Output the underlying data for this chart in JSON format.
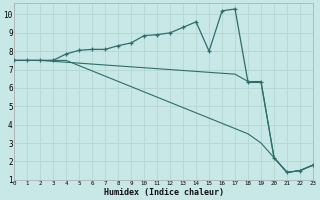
{
  "xlabel": "Humidex (Indice chaleur)",
  "bg_color": "#c8e8e8",
  "line_color": "#2d6e6a",
  "grid_color": "#b8d8d4",
  "xlim": [
    0,
    23
  ],
  "ylim": [
    1,
    10.6
  ],
  "xticks": [
    0,
    1,
    2,
    3,
    4,
    5,
    6,
    7,
    8,
    9,
    10,
    11,
    12,
    13,
    14,
    15,
    16,
    17,
    18,
    19,
    20,
    21,
    22,
    23
  ],
  "yticks": [
    1,
    2,
    3,
    4,
    5,
    6,
    7,
    8,
    9,
    10
  ],
  "line1_x": [
    0,
    1,
    2,
    3,
    4,
    5,
    6,
    7,
    8,
    9,
    10,
    11,
    12,
    13,
    14,
    15,
    16,
    17,
    18,
    19,
    20,
    21,
    22,
    23
  ],
  "line1_y": [
    7.5,
    7.5,
    7.5,
    7.5,
    7.85,
    8.05,
    8.1,
    8.1,
    8.3,
    8.45,
    8.85,
    8.9,
    9.0,
    9.3,
    9.6,
    8.0,
    10.2,
    10.3,
    6.3,
    6.3,
    2.2,
    1.4,
    1.5,
    1.8
  ],
  "line2_x": [
    0,
    1,
    2,
    3,
    4,
    5,
    6,
    7,
    8,
    9,
    10,
    11,
    12,
    13,
    14,
    15,
    16,
    17,
    18
  ],
  "line2_y": [
    7.5,
    7.5,
    7.5,
    7.45,
    7.4,
    7.35,
    7.3,
    7.25,
    7.2,
    7.15,
    7.1,
    7.05,
    7.0,
    6.95,
    6.9,
    6.85,
    6.8,
    6.75,
    6.35
  ],
  "line3_x": [
    0,
    1,
    2,
    3,
    4,
    18,
    19,
    20,
    21,
    22,
    23
  ],
  "line3_y": [
    7.5,
    7.5,
    7.5,
    7.5,
    7.5,
    3.5,
    3.0,
    2.2,
    1.4,
    1.5,
    1.8
  ],
  "line4_x": [
    18,
    19,
    20,
    21,
    22,
    23
  ],
  "line4_y": [
    6.35,
    6.35,
    2.2,
    1.4,
    1.5,
    1.8
  ]
}
